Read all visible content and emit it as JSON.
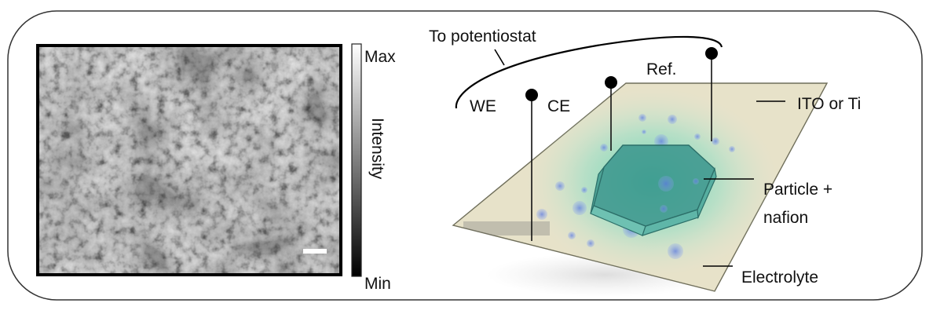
{
  "colorbar": {
    "max_label": "Max",
    "min_label": "Min",
    "axis_label": "Intensity"
  },
  "electrodes": {
    "connector_label": "To potentiostat",
    "we_label": "WE",
    "ce_label": "CE",
    "ref_label": "Ref."
  },
  "substrate": {
    "material_label": "ITO or Ti",
    "particle_label_line1": "Particle +",
    "particle_label_line2": "nafion",
    "electrolyte_label": "Electrolyte"
  },
  "colors": {
    "frame": "#333333",
    "plate": "#e7e2c9",
    "plate_edge": "#6f6e5a",
    "particle": "#2f8c86",
    "bubbles": "#6f86e0",
    "glow": "#63d6b8"
  }
}
